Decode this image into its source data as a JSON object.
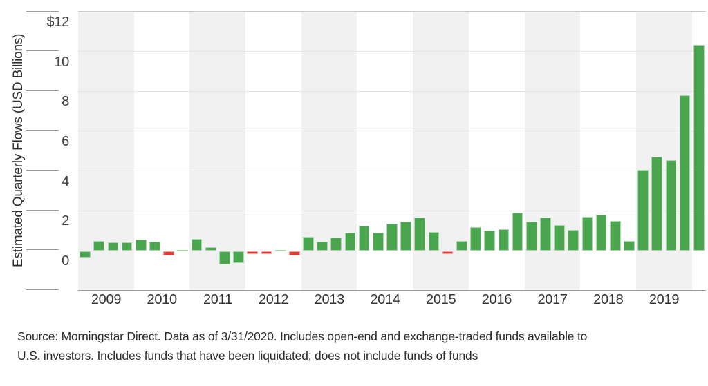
{
  "chart_data": {
    "type": "bar",
    "title": "",
    "ylabel": "Estimated Quarterly Flows (USD Billions)",
    "ylim": [
      -2,
      12
    ],
    "grid": "horizontal",
    "y_ticks": [
      {
        "value": 12,
        "label": "$12"
      },
      {
        "value": 10,
        "label": "10"
      },
      {
        "value": 8,
        "label": "8"
      },
      {
        "value": 6,
        "label": "6"
      },
      {
        "value": 4,
        "label": "4"
      },
      {
        "value": 2,
        "label": "2"
      },
      {
        "value": 0,
        "label": "0"
      },
      {
        "value": -2,
        "label": ""
      }
    ],
    "year_labels": [
      "2009",
      "2010",
      "2011",
      "2012",
      "2013",
      "2014",
      "2015",
      "2016",
      "2017",
      "2018",
      "2019"
    ],
    "colors": {
      "positive_green": "#4aa64e",
      "negative_red": "#e2382d",
      "band_gray": "#f1f1f1",
      "gridline": "#e3e3e3",
      "axis_line": "#9a9a9a"
    },
    "unit": "USD Billions",
    "bars": [
      {
        "period": "2009 Q1",
        "value": -0.3,
        "color": "green"
      },
      {
        "period": "2009 Q2",
        "value": 0.5,
        "color": "green"
      },
      {
        "period": "2009 Q3",
        "value": 0.42,
        "color": "green"
      },
      {
        "period": "2009 Q4",
        "value": 0.4,
        "color": "green"
      },
      {
        "period": "2010 Q1",
        "value": 0.55,
        "color": "green"
      },
      {
        "period": "2010 Q2",
        "value": 0.45,
        "color": "green"
      },
      {
        "period": "2010 Q3",
        "value": -0.2,
        "color": "red"
      },
      {
        "period": "2010 Q4",
        "value": 0.05,
        "color": "green"
      },
      {
        "period": "2011 Q1",
        "value": 0.6,
        "color": "green"
      },
      {
        "period": "2011 Q2",
        "value": 0.17,
        "color": "green"
      },
      {
        "period": "2011 Q3",
        "value": -0.65,
        "color": "green"
      },
      {
        "period": "2011 Q4",
        "value": -0.6,
        "color": "green"
      },
      {
        "period": "2012 Q1",
        "value": -0.15,
        "color": "red"
      },
      {
        "period": "2012 Q2",
        "value": -0.15,
        "color": "red"
      },
      {
        "period": "2012 Q3",
        "value": 0.04,
        "color": "green"
      },
      {
        "period": "2012 Q4",
        "value": -0.22,
        "color": "red"
      },
      {
        "period": "2013 Q1",
        "value": 0.7,
        "color": "green"
      },
      {
        "period": "2013 Q2",
        "value": 0.45,
        "color": "green"
      },
      {
        "period": "2013 Q3",
        "value": 0.65,
        "color": "green"
      },
      {
        "period": "2013 Q4",
        "value": 0.9,
        "color": "green"
      },
      {
        "period": "2014 Q1",
        "value": 1.25,
        "color": "green"
      },
      {
        "period": "2014 Q2",
        "value": 0.9,
        "color": "green"
      },
      {
        "period": "2014 Q3",
        "value": 1.35,
        "color": "green"
      },
      {
        "period": "2014 Q4",
        "value": 1.45,
        "color": "green"
      },
      {
        "period": "2015 Q1",
        "value": 1.65,
        "color": "green"
      },
      {
        "period": "2015 Q2",
        "value": 0.95,
        "color": "green"
      },
      {
        "period": "2015 Q3",
        "value": -0.15,
        "color": "red"
      },
      {
        "period": "2015 Q4",
        "value": 0.47,
        "color": "green"
      },
      {
        "period": "2016 Q1",
        "value": 1.17,
        "color": "green"
      },
      {
        "period": "2016 Q2",
        "value": 1.0,
        "color": "green"
      },
      {
        "period": "2016 Q3",
        "value": 1.07,
        "color": "green"
      },
      {
        "period": "2016 Q4",
        "value": 1.9,
        "color": "green"
      },
      {
        "period": "2017 Q1",
        "value": 1.45,
        "color": "green"
      },
      {
        "period": "2017 Q2",
        "value": 1.68,
        "color": "green"
      },
      {
        "period": "2017 Q3",
        "value": 1.28,
        "color": "green"
      },
      {
        "period": "2017 Q4",
        "value": 1.05,
        "color": "green"
      },
      {
        "period": "2018 Q1",
        "value": 1.7,
        "color": "green"
      },
      {
        "period": "2018 Q2",
        "value": 1.8,
        "color": "green"
      },
      {
        "period": "2018 Q3",
        "value": 1.5,
        "color": "green"
      },
      {
        "period": "2018 Q4",
        "value": 0.5,
        "color": "green"
      },
      {
        "period": "2019 Q1",
        "value": 4.05,
        "color": "green"
      },
      {
        "period": "2019 Q2",
        "value": 4.7,
        "color": "green"
      },
      {
        "period": "2019 Q3",
        "value": 4.55,
        "color": "green"
      },
      {
        "period": "2019 Q4",
        "value": 7.8,
        "color": "green"
      },
      {
        "period": "2020 Q1",
        "value": 10.35,
        "color": "green"
      }
    ]
  },
  "source_note": {
    "line1": "Source: Morningstar Direct. Data as of 3/31/2020. Includes open-end and exchange-traded funds available to",
    "line2": "U.S. investors. Includes funds that have been liquidated; does not include funds of funds"
  }
}
